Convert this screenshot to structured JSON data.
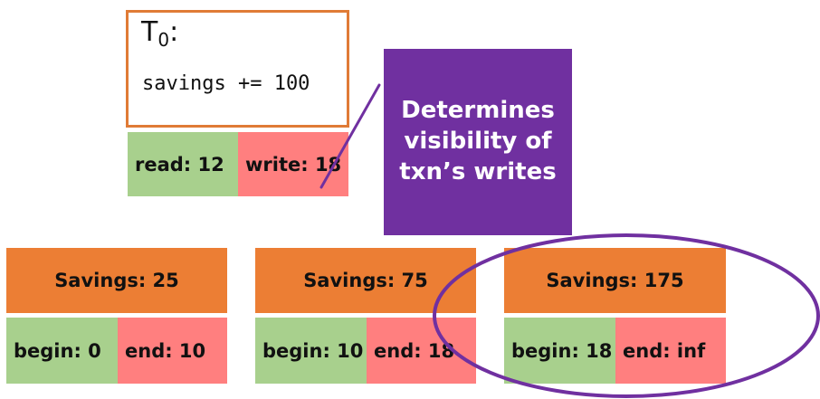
{
  "transaction": {
    "title_base": "T",
    "title_sub": "0",
    "title_suffix": ":",
    "code": "savings += 100",
    "read_label": "read: 12",
    "write_label": "write: 18"
  },
  "callout": {
    "line1": "Determines",
    "line2": "visibility of",
    "line3": "txn’s writes"
  },
  "versions": [
    {
      "value_label": "Savings: 25",
      "begin_label": "begin: 0",
      "end_label": "end: 10"
    },
    {
      "value_label": "Savings: 75",
      "begin_label": "begin: 10",
      "end_label": "end: 18"
    },
    {
      "value_label": "Savings: 175",
      "begin_label": "begin: 18",
      "end_label": "end: inf"
    }
  ],
  "colors": {
    "orange": "#ec7e34",
    "green": "#a8d08d",
    "red": "#ff7f7f",
    "purple": "#7030a0"
  }
}
